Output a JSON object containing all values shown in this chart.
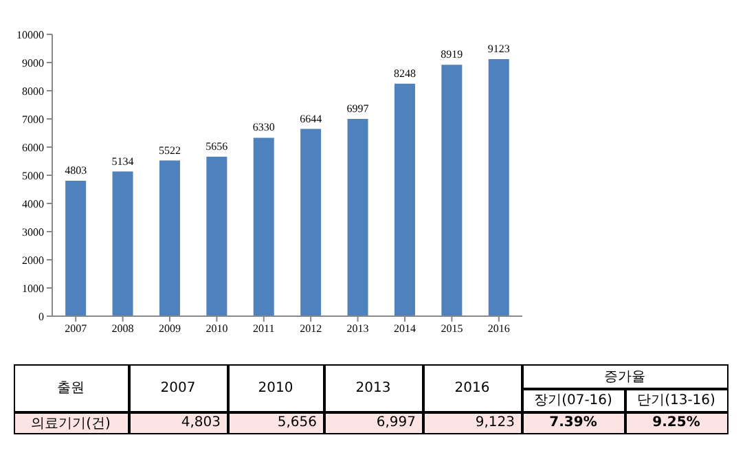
{
  "chart_data": {
    "type": "bar",
    "categories": [
      "2007",
      "2008",
      "2009",
      "2010",
      "2011",
      "2012",
      "2013",
      "2014",
      "2015",
      "2016"
    ],
    "values": [
      4803,
      5134,
      5522,
      5656,
      6330,
      6644,
      6997,
      8248,
      8919,
      9123
    ],
    "color": "#4f81bd",
    "ylim": [
      0,
      10000
    ],
    "yticks": [
      0,
      1000,
      2000,
      3000,
      4000,
      5000,
      6000,
      7000,
      8000,
      9000,
      10000
    ],
    "grid": false,
    "data_labels": true,
    "annotations": [
      "출원",
      "2007",
      "2010",
      "2013",
      "2016",
      "증가율",
      "장기(07-16)",
      "단기(13-16)",
      "의료기기(건)",
      "4,803",
      "5,656",
      "6,997",
      "9,123",
      "7.39%",
      "9.25%"
    ]
  }
}
